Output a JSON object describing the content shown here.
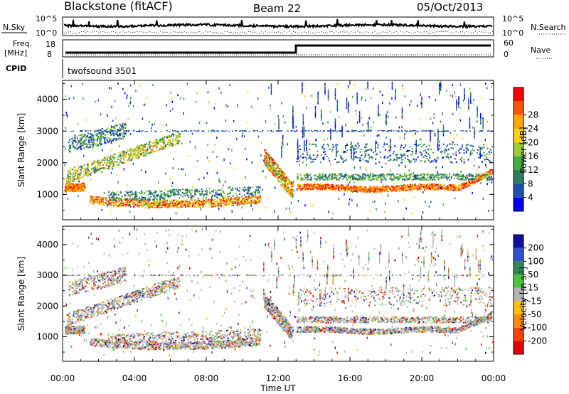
{
  "header": {
    "station": "Blackstone (fitACF)",
    "beam": "Beam 22",
    "date": "05/Oct/2013"
  },
  "noise": {
    "left_label": "N.Sky",
    "right_label": "N.Search",
    "ticks": [
      "10^5",
      "10^0"
    ]
  },
  "freq": {
    "label_line1": "Freq.",
    "label_line2": "[MHz]",
    "left_ticks": [
      "18",
      "8"
    ],
    "right_label": "Nave",
    "right_ticks": [
      "60",
      "0"
    ]
  },
  "cpid": {
    "label": "CPID",
    "program": "twofsound 3501"
  },
  "colors": {
    "axis": "#000000",
    "scatter_light": "#7a9ad0",
    "velocity_grey": "#c0c0c0"
  },
  "chart_data": [
    {
      "type": "heatmap",
      "name": "power",
      "ylabel": "Slant Range [km]",
      "yticks": [
        "1000",
        "2000",
        "3000",
        "4000"
      ],
      "ylim": [
        200,
        4600
      ],
      "xlim": [
        0,
        24
      ],
      "colorbar": {
        "label": "Power [dB]",
        "tick_labels": [
          "4",
          "8",
          "12",
          "16",
          "20",
          "24",
          "28"
        ],
        "bins": [
          "#0000ff",
          "#1c4fae",
          "#2e7d5b",
          "#3fae3f",
          "#9acd32",
          "#ffd200",
          "#ffa500",
          "#ff5500",
          "#ff0000"
        ]
      }
    },
    {
      "type": "heatmap",
      "name": "velocity",
      "ylabel": "Slant Range [km]",
      "yticks": [
        "1000",
        "2000",
        "3000",
        "4000"
      ],
      "ylim": [
        200,
        4600
      ],
      "xlim": [
        0,
        24
      ],
      "colorbar": {
        "label_main": "Velocity [m s",
        "label_sup": "-1",
        "label_end": "]",
        "tick_labels": [
          "200",
          "100",
          "50",
          "15",
          "-15",
          "-50",
          "-100",
          "-200"
        ],
        "bins": [
          "#1010a0",
          "#3050d0",
          "#2e8b57",
          "#4ec13e",
          "#b4b4b4",
          "#ffc000",
          "#ff8c00",
          "#ff4000",
          "#e00000"
        ]
      }
    }
  ],
  "xaxis": {
    "label": "Time UT",
    "ticks": [
      "00:00",
      "04:00",
      "08:00",
      "12:00",
      "16:00",
      "20:00",
      "00:00"
    ]
  }
}
